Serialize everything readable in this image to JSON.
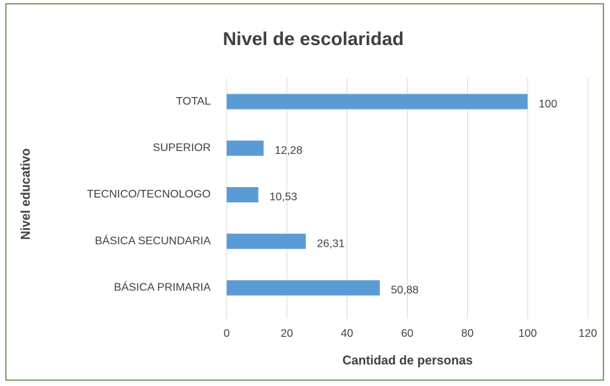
{
  "chart_data": {
    "type": "bar",
    "orientation": "horizontal",
    "title": "Nivel de escolaridad",
    "x_label": "Cantidad de personas",
    "y_label": "Nivel educativo",
    "categories": [
      "TOTAL",
      "SUPERIOR",
      "TECNICO/TECNOLOGO",
      "BÁSICA SECUNDARIA",
      "BÁSICA PRIMARIA"
    ],
    "values": [
      100,
      12.28,
      10.53,
      26.31,
      50.88
    ],
    "value_labels": [
      "100",
      "12,28",
      "10,53",
      "26,31",
      "50,88"
    ],
    "color": "#5b9bd5",
    "xlim": [
      0,
      120
    ],
    "xticks": [
      0,
      20,
      40,
      60,
      80,
      100,
      120
    ],
    "grid": true
  }
}
